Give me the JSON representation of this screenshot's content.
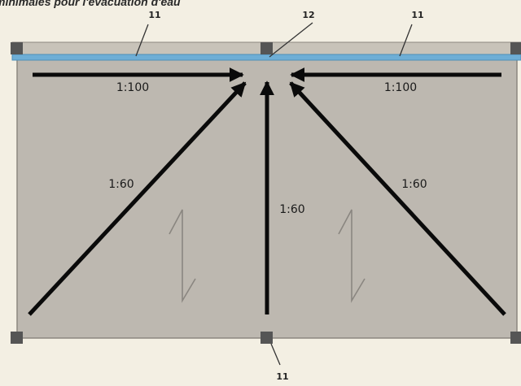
{
  "caption": "minimales pour l'évacuation d'eau",
  "callouts": {
    "gutter_left": "11",
    "drain": "12",
    "gutter_right": "11",
    "corner_bottom": "11"
  },
  "slopes": {
    "top_left": "1:100",
    "top_right": "1:100",
    "diagonal_left": "1:60",
    "center": "1:60",
    "diagonal_right": "1:60"
  },
  "colors": {
    "background": "#f3efe3",
    "roof_surface": "#bdb8b0",
    "gutter": "#6eaed6",
    "post": "#555555",
    "arrow": "#0a0a0a"
  }
}
